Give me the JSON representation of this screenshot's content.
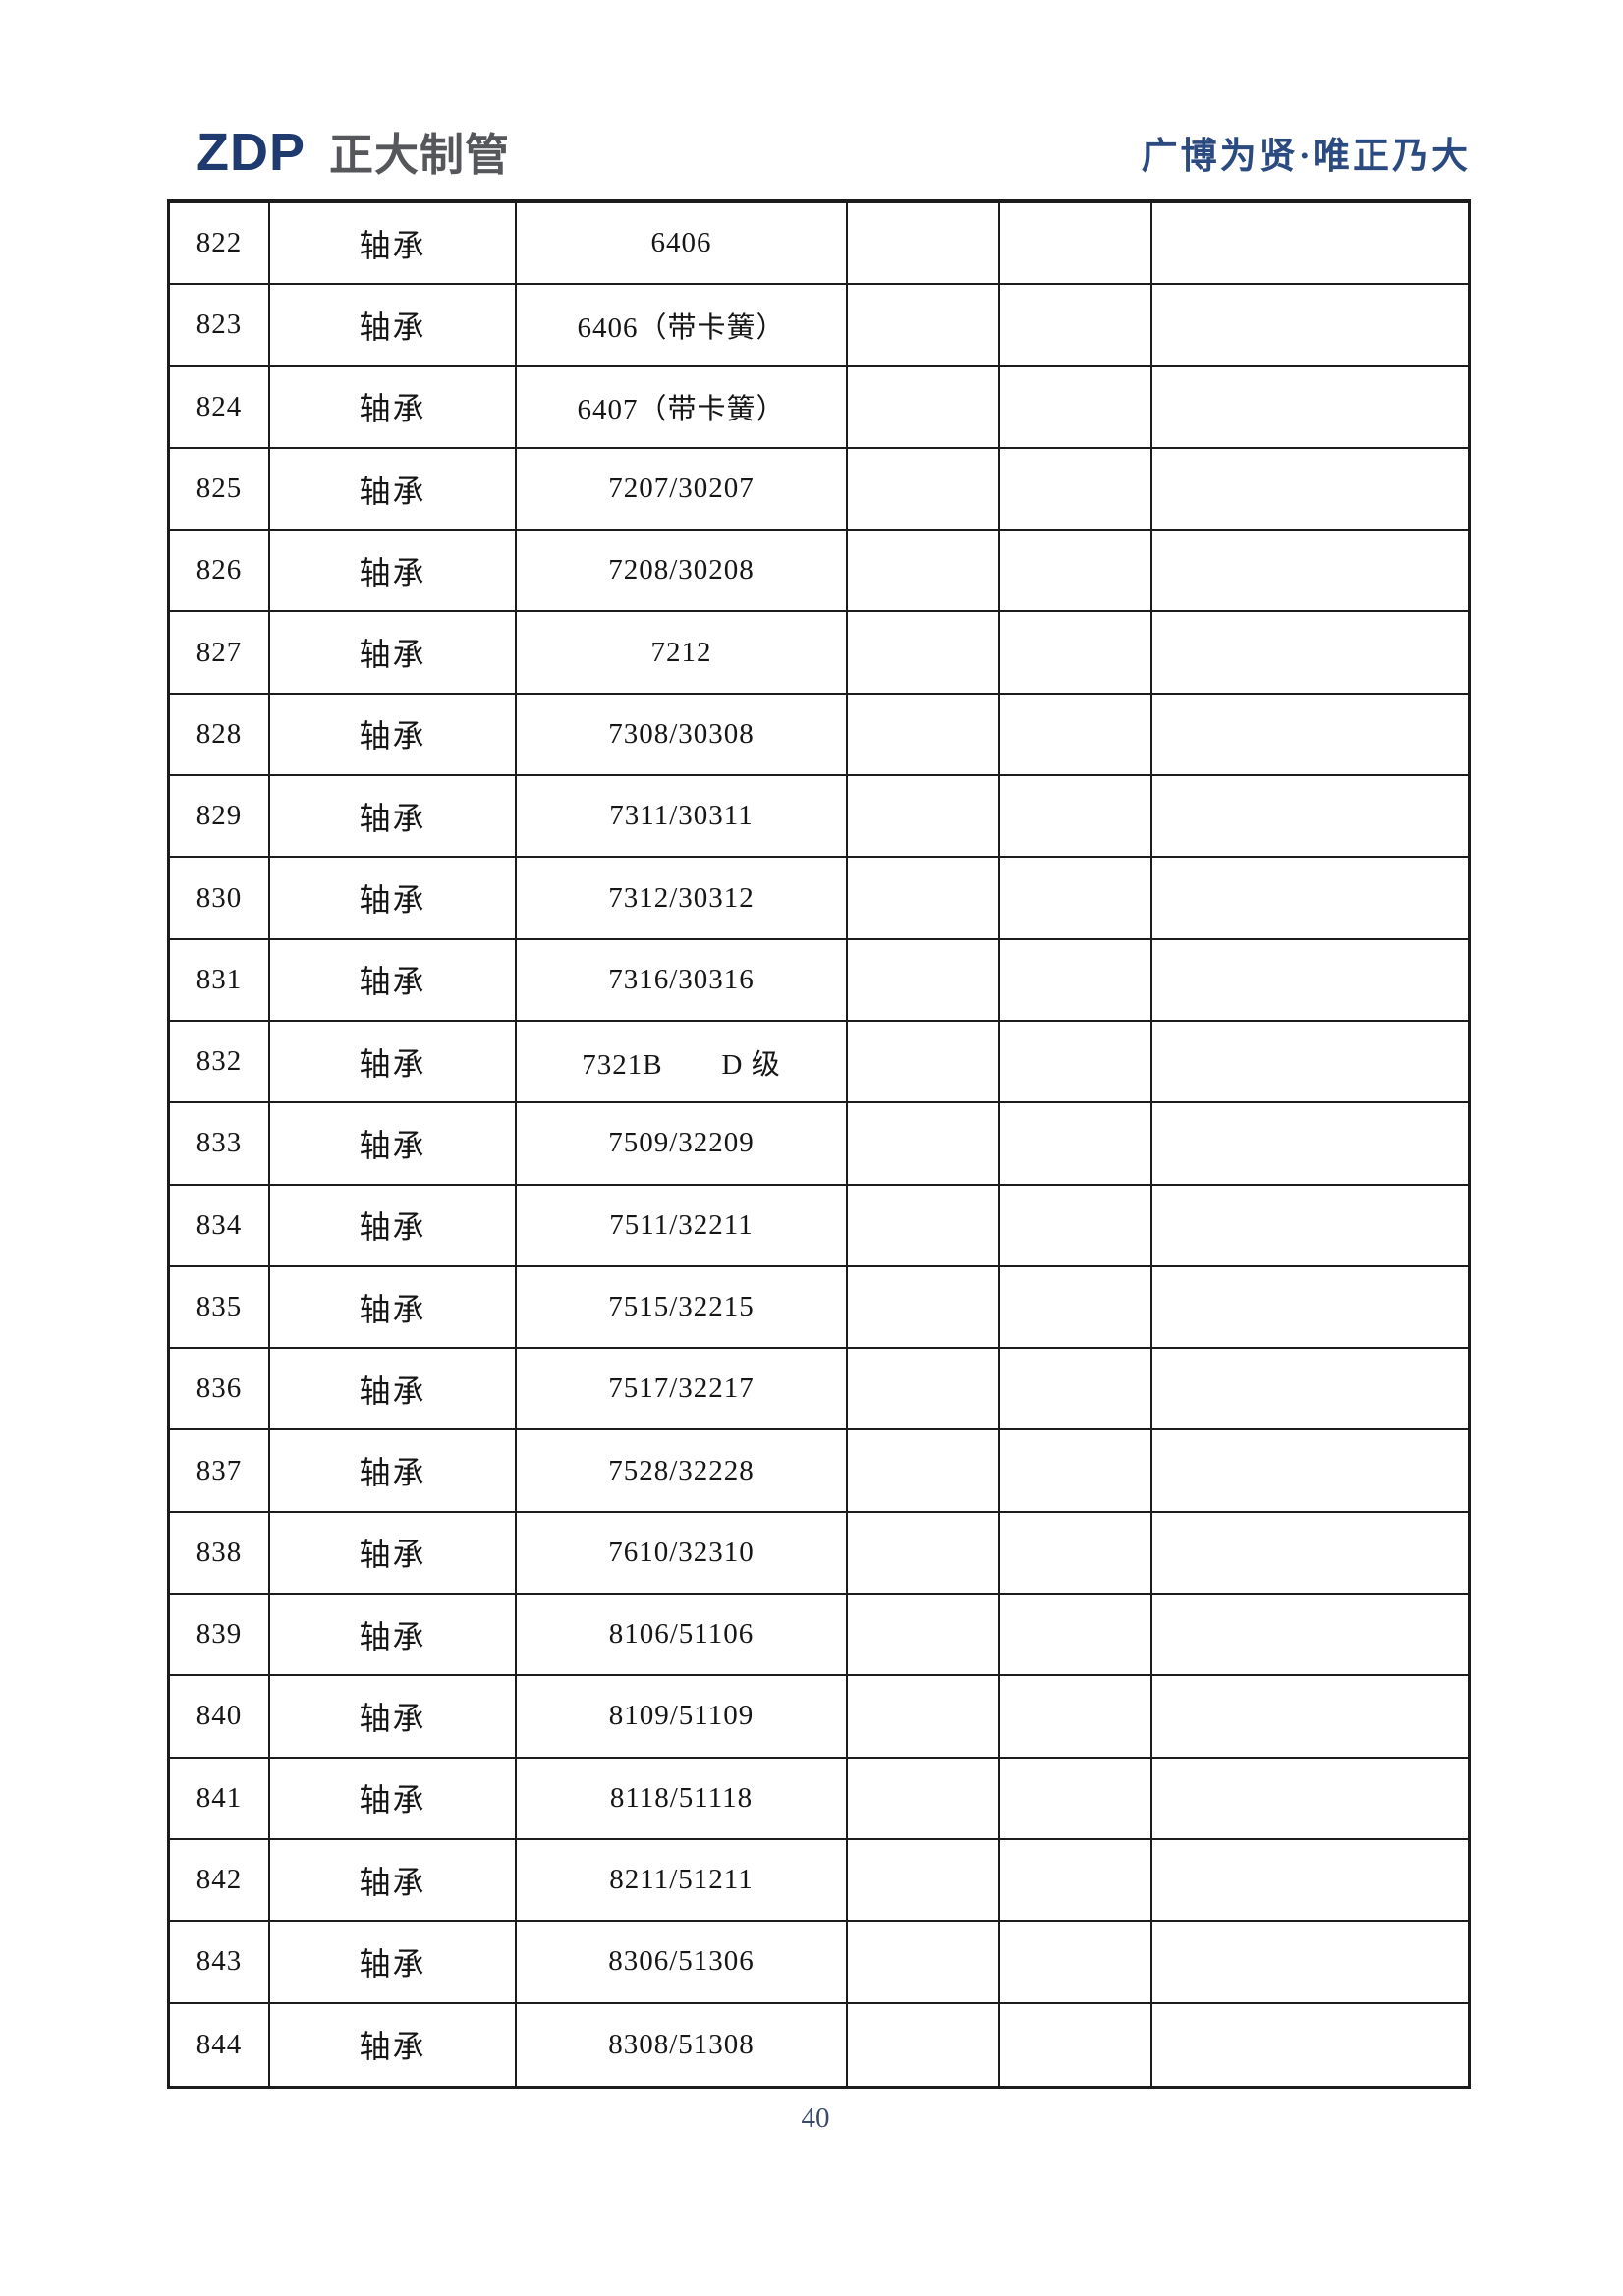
{
  "header": {
    "logo_abbr": "ZDP",
    "logo_name": "正大制管",
    "slogan": "广博为贤·唯正乃大"
  },
  "table": {
    "rows": [
      {
        "index": "822",
        "name": "轴承",
        "model": "6406"
      },
      {
        "index": "823",
        "name": "轴承",
        "model": "6406（带卡簧）"
      },
      {
        "index": "824",
        "name": "轴承",
        "model": "6407（带卡簧）"
      },
      {
        "index": "825",
        "name": "轴承",
        "model": "7207/30207"
      },
      {
        "index": "826",
        "name": "轴承",
        "model": "7208/30208"
      },
      {
        "index": "827",
        "name": "轴承",
        "model": "7212"
      },
      {
        "index": "828",
        "name": "轴承",
        "model": "7308/30308"
      },
      {
        "index": "829",
        "name": "轴承",
        "model": "7311/30311"
      },
      {
        "index": "830",
        "name": "轴承",
        "model": "7312/30312"
      },
      {
        "index": "831",
        "name": "轴承",
        "model": "7316/30316"
      },
      {
        "index": "832",
        "name": "轴承",
        "model": "7321B　　D 级"
      },
      {
        "index": "833",
        "name": "轴承",
        "model": "7509/32209"
      },
      {
        "index": "834",
        "name": "轴承",
        "model": "7511/32211"
      },
      {
        "index": "835",
        "name": "轴承",
        "model": "7515/32215"
      },
      {
        "index": "836",
        "name": "轴承",
        "model": "7517/32217"
      },
      {
        "index": "837",
        "name": "轴承",
        "model": "7528/32228"
      },
      {
        "index": "838",
        "name": "轴承",
        "model": "7610/32310"
      },
      {
        "index": "839",
        "name": "轴承",
        "model": "8106/51106"
      },
      {
        "index": "840",
        "name": "轴承",
        "model": "8109/51109"
      },
      {
        "index": "841",
        "name": "轴承",
        "model": "8118/51118"
      },
      {
        "index": "842",
        "name": "轴承",
        "model": "8211/51211"
      },
      {
        "index": "843",
        "name": "轴承",
        "model": "8306/51306"
      },
      {
        "index": "844",
        "name": "轴承",
        "model": "8308/51308"
      }
    ]
  },
  "footer": {
    "page_number": "40"
  },
  "colors": {
    "logo_navy": "#1e3a6e",
    "logo_gray": "#56575b",
    "slogan_blue": "#2b4a80",
    "table_line": "#1c1c1c",
    "text_ink": "#161616",
    "page_number": "#3a4a6b"
  }
}
